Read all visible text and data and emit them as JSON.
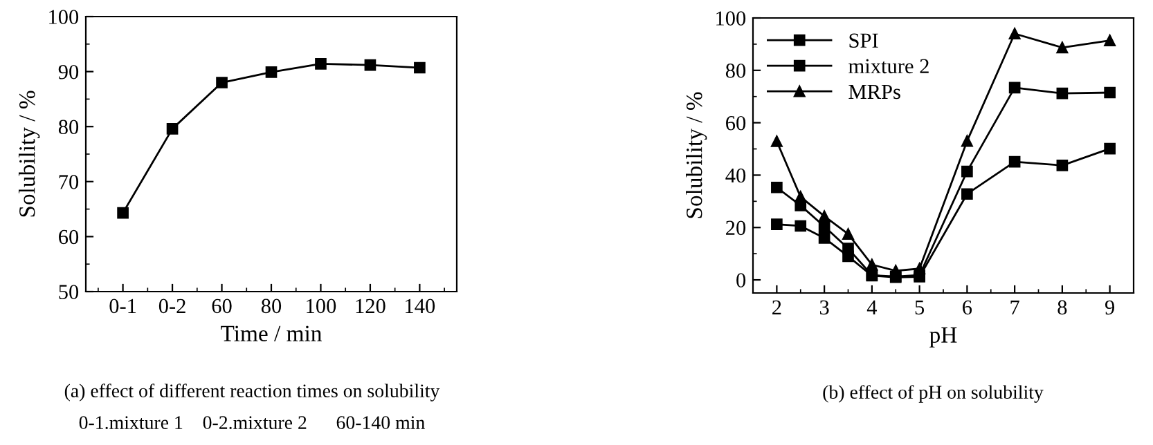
{
  "chart_data": [
    {
      "type": "line",
      "xlabel": "Time / min",
      "ylabel": "Solubility / %",
      "categories": [
        "0-1",
        "0-2",
        "60",
        "80",
        "100",
        "120",
        "140"
      ],
      "series": [
        {
          "color": "#000000",
          "values": [
            64.3,
            79.6,
            88.0,
            89.9,
            91.4,
            91.2,
            90.7
          ]
        }
      ],
      "ylim": [
        50,
        100
      ],
      "yticks": [
        50,
        60,
        70,
        80,
        90,
        100
      ],
      "marker": "square",
      "grid": false,
      "legend": false,
      "annotations": [
        "(a) effect of different reaction times on solubility",
        "0-1.mixture 1    0-2.mixture 2      60-140 min"
      ]
    },
    {
      "type": "line",
      "xlabel": "pH",
      "ylabel": "Solubility / %",
      "x": [
        2,
        2.5,
        3,
        3.5,
        4,
        4.5,
        5,
        6,
        7,
        8,
        9
      ],
      "series": [
        {
          "name": "SPI",
          "color": "#000000",
          "marker": "square",
          "values": [
            21.2,
            20.6,
            16,
            9,
            1.6,
            1,
            1.2,
            32.8,
            45.1,
            43.7,
            50.1
          ]
        },
        {
          "name": "mixture 2",
          "color": "#000000",
          "marker": "square",
          "values": [
            35.3,
            28.4,
            20.4,
            12,
            1.8,
            1.3,
            1.8,
            41.4,
            73.4,
            71.2,
            71.5
          ]
        },
        {
          "name": "MRPs",
          "color": "#000000",
          "marker": "triangle",
          "values": [
            52.9,
            31.7,
            24.3,
            17.5,
            5.8,
            3.5,
            4.3,
            53,
            94.0,
            88.7,
            91.4
          ]
        }
      ],
      "xlim": [
        1.5,
        9.5
      ],
      "xticks": [
        2,
        3,
        4,
        5,
        6,
        7,
        8,
        9
      ],
      "ylim": [
        -5,
        100
      ],
      "yticks": [
        0,
        20,
        40,
        60,
        80,
        100
      ],
      "grid": false,
      "legend": "top left",
      "annotations": [
        "(b) effect of pH on solubility"
      ]
    }
  ]
}
